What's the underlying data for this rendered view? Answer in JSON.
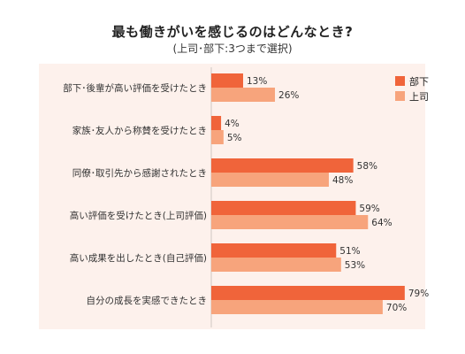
{
  "chart_data": {
    "type": "bar",
    "orientation": "horizontal",
    "title": "最も働きがいを感じるのはどんなとき?",
    "subtitle": "(上司･部下:3つまで選択)",
    "categories": [
      "部下･後輩が高い評価を受けたとき",
      "家族･友人から称賛を受けたとき",
      "同僚･取引先から感謝されたとき",
      "高い評価を受けたとき(上司評価)",
      "高い成果を出したとき(自己評価)",
      "自分の成長を実感できたとき"
    ],
    "series": [
      {
        "name": "部下",
        "color": "#f0643a",
        "values": [
          13,
          4,
          58,
          59,
          51,
          79
        ],
        "labels": [
          "13%",
          "4%",
          "58%",
          "59%",
          "51%",
          "79%"
        ]
      },
      {
        "name": "上司",
        "color": "#f7a47c",
        "values": [
          26,
          5,
          48,
          64,
          53,
          70
        ],
        "labels": [
          "26%",
          "5%",
          "48%",
          "64%",
          "53%",
          "70%"
        ]
      }
    ],
    "unit": "%",
    "xlim": [
      0,
      100
    ],
    "grid": false,
    "legend_position": "top-right",
    "background_color": "#fdf1ec"
  }
}
